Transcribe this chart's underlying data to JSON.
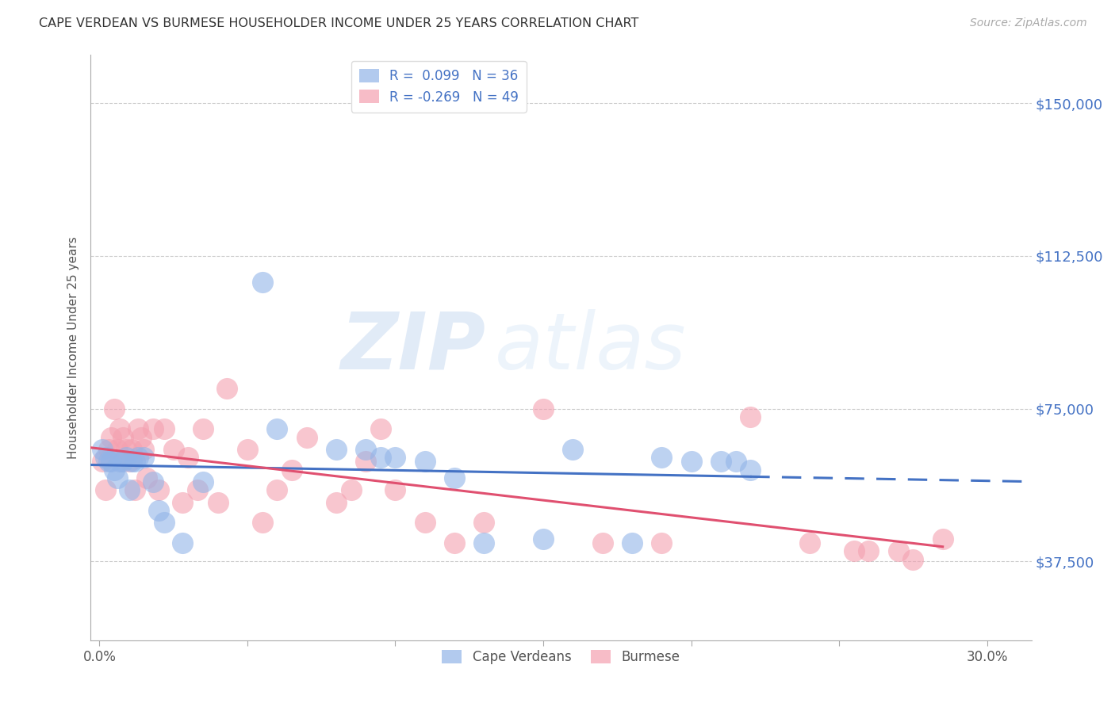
{
  "title": "CAPE VERDEAN VS BURMESE HOUSEHOLDER INCOME UNDER 25 YEARS CORRELATION CHART",
  "source": "Source: ZipAtlas.com",
  "ylabel": "Householder Income Under 25 years",
  "ytick_labels": [
    "$150,000",
    "$112,500",
    "$75,000",
    "$37,500"
  ],
  "ytick_values": [
    150000,
    112500,
    75000,
    37500
  ],
  "ylim": [
    18000,
    162000
  ],
  "xlim": [
    -0.003,
    0.315
  ],
  "cape_verdean_R": 0.099,
  "cape_verdean_N": 36,
  "burmese_R": -0.269,
  "burmese_N": 49,
  "cape_verdean_color": "#92b4e8",
  "burmese_color": "#f4a0b0",
  "trend_cape_verdean_color": "#4472c4",
  "trend_burmese_color": "#e05070",
  "watermark_zip": "ZIP",
  "watermark_atlas": "atlas",
  "cape_verdean_x": [
    0.001,
    0.002,
    0.003,
    0.004,
    0.005,
    0.006,
    0.007,
    0.008,
    0.009,
    0.01,
    0.011,
    0.012,
    0.013,
    0.015,
    0.018,
    0.02,
    0.022,
    0.028,
    0.035,
    0.055,
    0.06,
    0.08,
    0.09,
    0.095,
    0.1,
    0.11,
    0.12,
    0.13,
    0.15,
    0.16,
    0.18,
    0.19,
    0.2,
    0.21,
    0.215,
    0.22
  ],
  "cape_verdean_y": [
    65000,
    63000,
    62000,
    62000,
    60000,
    58000,
    62000,
    62000,
    63000,
    55000,
    62000,
    62000,
    63000,
    63000,
    57000,
    50000,
    47000,
    42000,
    57000,
    106000,
    70000,
    65000,
    65000,
    63000,
    63000,
    62000,
    58000,
    42000,
    43000,
    65000,
    42000,
    63000,
    62000,
    62000,
    62000,
    60000
  ],
  "burmese_x": [
    0.001,
    0.002,
    0.003,
    0.004,
    0.005,
    0.006,
    0.007,
    0.008,
    0.009,
    0.01,
    0.011,
    0.012,
    0.013,
    0.014,
    0.015,
    0.016,
    0.018,
    0.02,
    0.022,
    0.025,
    0.028,
    0.03,
    0.033,
    0.035,
    0.04,
    0.043,
    0.05,
    0.055,
    0.06,
    0.065,
    0.07,
    0.08,
    0.085,
    0.09,
    0.095,
    0.1,
    0.11,
    0.12,
    0.13,
    0.15,
    0.17,
    0.19,
    0.22,
    0.24,
    0.255,
    0.26,
    0.27,
    0.275,
    0.285
  ],
  "burmese_y": [
    62000,
    55000,
    65000,
    68000,
    75000,
    65000,
    70000,
    68000,
    65000,
    62000,
    65000,
    55000,
    70000,
    68000,
    65000,
    58000,
    70000,
    55000,
    70000,
    65000,
    52000,
    63000,
    55000,
    70000,
    52000,
    80000,
    65000,
    47000,
    55000,
    60000,
    68000,
    52000,
    55000,
    62000,
    70000,
    55000,
    47000,
    42000,
    47000,
    75000,
    42000,
    42000,
    73000,
    42000,
    40000,
    40000,
    40000,
    38000,
    43000
  ]
}
